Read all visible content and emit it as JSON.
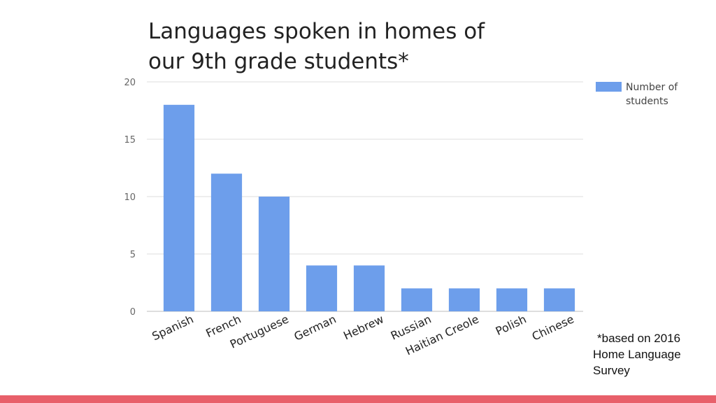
{
  "slide": {
    "footnote_lines": [
      "*based on 2016",
      "Home Language",
      "Survey"
    ],
    "accent_color": "#e8606a"
  },
  "chart_data": {
    "type": "bar",
    "title_lines": [
      "Languages spoken in homes of",
      "our 9th grade students*"
    ],
    "categories": [
      "Spanish",
      "French",
      "Portuguese",
      "German",
      "Hebrew",
      "Russian",
      "Haitian Creole",
      "Polish",
      "Chinese"
    ],
    "series": [
      {
        "name": "Number of students",
        "values": [
          18,
          12,
          10,
          4,
          4,
          2,
          2,
          2,
          2
        ],
        "color": "#6d9eeb"
      }
    ],
    "legend_lines": [
      "Number of",
      "students"
    ],
    "legend_position": "right",
    "ylim": [
      0,
      20
    ],
    "yticks": [
      0,
      5,
      10,
      15,
      20
    ],
    "grid": true,
    "xlabel": "",
    "ylabel": ""
  }
}
